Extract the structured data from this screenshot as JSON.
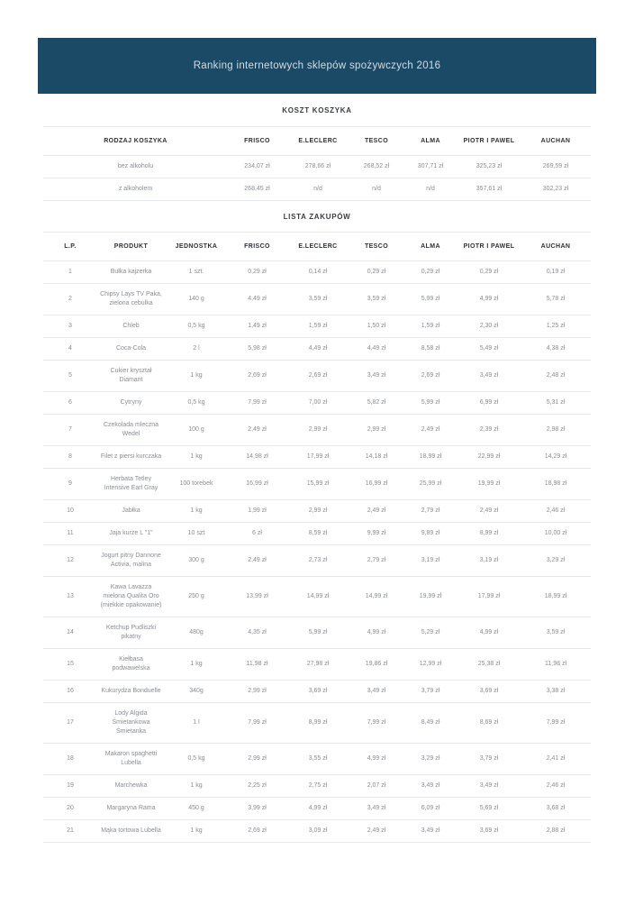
{
  "banner": {
    "title": "Ranking internetowych sklepów spożywczych 2016",
    "background_color": "#1b4a67",
    "text_color": "#d4dce2"
  },
  "basket_section": {
    "heading": "KOSZT KOSZYKA",
    "table": {
      "columns": [
        "RODZAJ KOSZYKA",
        "FRISCO",
        "E.LECLERC",
        "TESCO",
        "ALMA",
        "PIOTR I PAWEL",
        "AUCHAN"
      ],
      "rows": [
        [
          "bez alkoholu",
          "234,07 zł",
          "278,66 zł",
          "268,52 zł",
          "307,71 zł",
          "325,23 zł",
          "269,59 zł"
        ],
        [
          "z alkoholem",
          "268,45 zł",
          "n/d",
          "n/d",
          "n/d",
          "357,61 zł",
          "302,23 zł"
        ]
      ]
    }
  },
  "shopping_section": {
    "heading": "LISTA ZAKUPÓW",
    "table": {
      "columns": [
        "L.P.",
        "PRODUKT",
        "JEDNOSTKA",
        "FRISCO",
        "E.LECLERC",
        "TESCO",
        "ALMA",
        "PIOTR I PAWEL",
        "AUCHAN"
      ],
      "rows": [
        [
          "1",
          "Bułka kajzerka",
          "1 szt.",
          "0,29 zł",
          "0,14 zł",
          "0,29 zł",
          "0,29 zł",
          "0,29 zł",
          "0,19 zł"
        ],
        [
          "2",
          "Chipsy Lays TV Paka, zielona cebulka",
          "140 g",
          "4,49 zł",
          "3,59 zł",
          "3,59 zł",
          "5,99 zł",
          "4,99 zł",
          "5,78 zł"
        ],
        [
          "3",
          "Chleb",
          "0,5 kg",
          "1,49 zł",
          "1,59 zł",
          "1,50 zł",
          "1,59 zł",
          "2,30 zł",
          "1,25 zł"
        ],
        [
          "4",
          "Coca-Cola",
          "2 l",
          "5,98 zł",
          "4,49 zł",
          "4,49 zł",
          "8,58 zł",
          "5,49 zł",
          "4,38 zł"
        ],
        [
          "5",
          "Cukier kryształ Diamant",
          "1 kg",
          "2,69 zł",
          "2,69 zł",
          "3,49 zł",
          "2,69 zł",
          "3,49 zł",
          "2,48 zł"
        ],
        [
          "6",
          "Cytryny",
          "0,5 kg",
          "7,99 zł",
          "7,00 zł",
          "5,82 zł",
          "5,99 zł",
          "6,99 zł",
          "5,31 zł"
        ],
        [
          "7",
          "Czekolada mleczna Wedel",
          "100 g",
          "2,49 zł",
          "2,99 zł",
          "2,99 zł",
          "2,49 zł",
          "2,39 zł",
          "2,98 zł"
        ],
        [
          "8",
          "Filet z piersi kurczaka",
          "1 kg",
          "14,98 zł",
          "17,99 zł",
          "14,18 zł",
          "18,99 zł",
          "22,99 zł",
          "14,29 zł"
        ],
        [
          "9",
          "Herbata Tetley Intensive Earl Gray",
          "100 torebek",
          "16,99 zł",
          "15,99 zł",
          "16,99 zł",
          "25,99 zł",
          "19,99 zł",
          "18,98 zł"
        ],
        [
          "10",
          "Jabłka",
          "1 kg",
          "1,99 zł",
          "2,99 zł",
          "2,49 zł",
          "2,79 zł",
          "2,49 zł",
          "2,46 zł"
        ],
        [
          "11",
          "Jaja kurze L \"1\"",
          "10 szt",
          "6 zł",
          "8,59 zł",
          "9,99 zł",
          "9,89 zł",
          "8,99 zł",
          "10,00 zł"
        ],
        [
          "12",
          "Jogurt pitny Dannone Activia, malina",
          "300 g",
          "2,49 zł",
          "2,73 zł",
          "2,79 zł",
          "3,19 zł",
          "3,19 zł",
          "3,29 zł"
        ],
        [
          "13",
          "Kawa Lavazza mielona Qualita Oro (miekkie opakowanie)",
          "250 g",
          "13,99 zł",
          "14,99 zł",
          "14,99 zł",
          "19,99 zł",
          "17,99 zł",
          "18,99 zł"
        ],
        [
          "14",
          "Ketchup Pudliszki pikatny",
          "480g",
          "4,35 zł",
          "5,99 zł",
          "4,99 zł",
          "5,29 zł",
          "4,99 zł",
          "3,59 zł"
        ],
        [
          "15",
          "Kiełbasa podwawelska",
          "1 kg",
          "11,98 zł",
          "27,98 zł",
          "19,86 zł",
          "12,99 zł",
          "25,38 zł",
          "11,98 zł"
        ],
        [
          "16",
          "Kukurydza Bonduelle",
          "340g",
          "2,99 zł",
          "3,69 zł",
          "3,49 zł",
          "3,79 zł",
          "3,69 zł",
          "3,38 zł"
        ],
        [
          "17",
          "Lody Algida Śmietankowa Śmietanka",
          "1 l",
          "7,99 zł",
          "8,99 zł",
          "7,99 zł",
          "8,49 zł",
          "8,69 zł",
          "7,99 zł"
        ],
        [
          "18",
          "Makaron spaghetti Lubella",
          "0,5 kg",
          "2,99 zł",
          "3,55 zł",
          "4,99 zł",
          "3,29 zł",
          "3,79 zł",
          "2,41 zł"
        ],
        [
          "19",
          "Marchewka",
          "1 kg",
          "2,25 zł",
          "2,75 zł",
          "2,07 zł",
          "3,49 zł",
          "3,49 zł",
          "2,46 zł"
        ],
        [
          "20",
          "Margaryna Rama",
          "450 g",
          "3,99 zł",
          "4,99 zł",
          "3,49 zł",
          "6,09 zł",
          "5,69 zł",
          "3,68 zł"
        ],
        [
          "21",
          "Mąka tortowa Lubella",
          "1 kg",
          "2,69 zł",
          "3,09 zł",
          "2,49 zł",
          "3,49 zł",
          "3,69 zł",
          "2,88 zł"
        ]
      ]
    }
  }
}
